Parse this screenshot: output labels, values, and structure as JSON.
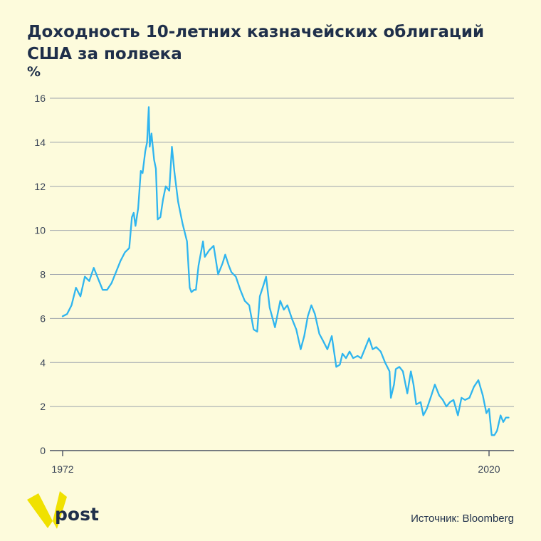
{
  "title": "Доходность 10-летних казначейских облигаций США за полвека",
  "unit_label": "%",
  "source": "Источник: Bloomberg",
  "logo_text": "post",
  "colors": {
    "background": "#fdfbdc",
    "line": "#2fb5ef",
    "grid": "#9da3ad",
    "logo": "#f0e100",
    "text": "#1f2f4a"
  },
  "chart_data": {
    "type": "line",
    "title": "Доходность 10-летних казначейских облигаций США за полвека",
    "xlabel": "",
    "ylabel": "%",
    "ylim": [
      0,
      16
    ],
    "y_ticks": [
      0,
      2,
      4,
      6,
      8,
      10,
      12,
      14,
      16
    ],
    "x_tick_labels": [
      {
        "x": 1972,
        "label": "1972"
      },
      {
        "x": 2020,
        "label": "2020"
      }
    ],
    "grid": true,
    "series": [
      {
        "name": "",
        "x": [
          1972.0,
          1972.5,
          1973.0,
          1973.5,
          1974.0,
          1974.5,
          1975.0,
          1975.5,
          1976.0,
          1976.5,
          1977.0,
          1977.5,
          1978.0,
          1978.5,
          1979.0,
          1979.5,
          1979.8,
          1980.0,
          1980.2,
          1980.5,
          1980.8,
          1981.0,
          1981.3,
          1981.5,
          1981.7,
          1981.8,
          1982.0,
          1982.3,
          1982.5,
          1982.7,
          1983.0,
          1983.3,
          1983.6,
          1984.0,
          1984.3,
          1984.6,
          1985.0,
          1985.5,
          1986.0,
          1986.3,
          1986.5,
          1986.8,
          1987.0,
          1987.3,
          1987.8,
          1988.0,
          1988.5,
          1989.0,
          1989.5,
          1990.0,
          1990.3,
          1990.7,
          1991.0,
          1991.5,
          1992.0,
          1992.5,
          1993.0,
          1993.5,
          1993.9,
          1994.2,
          1994.6,
          1994.9,
          1995.3,
          1995.9,
          1996.2,
          1996.5,
          1996.9,
          1997.3,
          1997.8,
          1998.3,
          1998.8,
          1999.2,
          1999.6,
          2000.0,
          2000.4,
          2000.9,
          2001.3,
          2001.8,
          2002.3,
          2002.8,
          2003.2,
          2003.5,
          2003.9,
          2004.3,
          2004.7,
          2005.2,
          2005.6,
          2006.0,
          2006.5,
          2006.9,
          2007.3,
          2007.8,
          2008.3,
          2008.8,
          2008.95,
          2009.3,
          2009.5,
          2009.9,
          2010.3,
          2010.8,
          2011.2,
          2011.5,
          2011.8,
          2012.3,
          2012.6,
          2013.0,
          2013.5,
          2013.9,
          2014.4,
          2014.8,
          2015.2,
          2015.6,
          2016.0,
          2016.5,
          2016.9,
          2017.3,
          2017.8,
          2018.3,
          2018.8,
          2019.3,
          2019.7,
          2020.0,
          2020.3,
          2020.6,
          2020.9,
          2021.3,
          2021.6,
          2021.9,
          2022.2
        ],
        "values": [
          6.1,
          6.2,
          6.6,
          7.4,
          7.0,
          7.9,
          7.7,
          8.3,
          7.8,
          7.3,
          7.3,
          7.6,
          8.1,
          8.6,
          9.0,
          9.2,
          10.6,
          10.8,
          10.2,
          11.0,
          12.7,
          12.6,
          13.6,
          14.0,
          15.6,
          13.8,
          14.4,
          13.2,
          12.8,
          10.5,
          10.6,
          11.4,
          12.0,
          11.8,
          13.8,
          12.6,
          11.3,
          10.3,
          9.5,
          7.4,
          7.2,
          7.3,
          7.3,
          8.4,
          9.5,
          8.8,
          9.1,
          9.3,
          8.0,
          8.5,
          8.9,
          8.4,
          8.1,
          7.9,
          7.3,
          6.8,
          6.6,
          5.5,
          5.4,
          7.0,
          7.5,
          7.9,
          6.5,
          5.6,
          6.2,
          6.8,
          6.4,
          6.6,
          6.0,
          5.5,
          4.6,
          5.2,
          6.1,
          6.6,
          6.2,
          5.3,
          5.0,
          4.6,
          5.2,
          3.8,
          3.9,
          4.4,
          4.2,
          4.5,
          4.2,
          4.3,
          4.2,
          4.6,
          5.1,
          4.6,
          4.7,
          4.5,
          4.0,
          3.6,
          2.4,
          3.0,
          3.7,
          3.8,
          3.6,
          2.6,
          3.6,
          3.0,
          2.1,
          2.2,
          1.6,
          1.9,
          2.5,
          3.0,
          2.5,
          2.3,
          2.0,
          2.2,
          2.3,
          1.6,
          2.4,
          2.3,
          2.4,
          2.9,
          3.2,
          2.5,
          1.7,
          1.9,
          0.7,
          0.7,
          0.9,
          1.6,
          1.3,
          1.5,
          1.5
        ]
      }
    ]
  }
}
